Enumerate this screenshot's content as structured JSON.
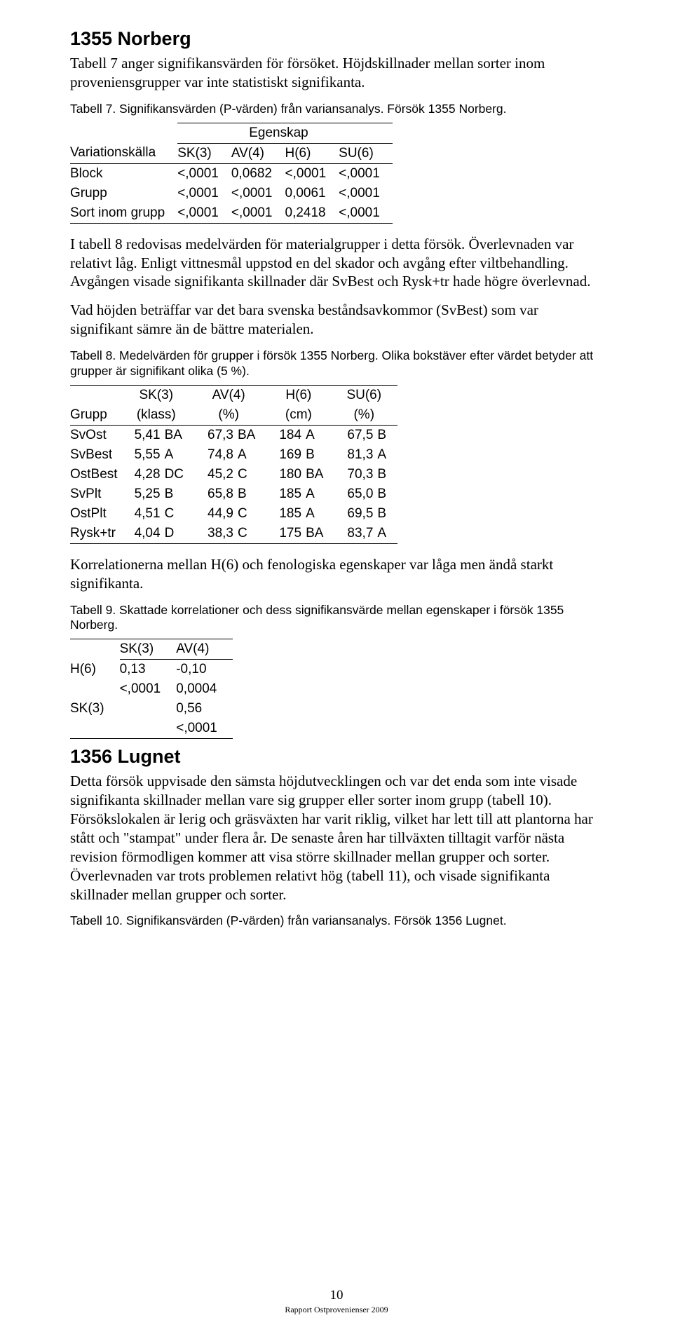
{
  "heading1": "1355 Norberg",
  "p1": "Tabell 7 anger signifikansvärden för försöket. Höjdskillnader mellan sorter inom proveniensgrupper var inte statistiskt signifikanta.",
  "caption7": "Tabell 7. Signifikansvärden (P-värden) från variansanalys. Försök 1355 Norberg.",
  "t7": {
    "egenskap": "Egenskap",
    "colhead": [
      "Variationskälla",
      "SK(3)",
      "AV(4)",
      "H(6)",
      "SU(6)"
    ],
    "rows": [
      {
        "label": "Block",
        "v": [
          "<,0001",
          "0,0682",
          "<,0001",
          "<,0001"
        ]
      },
      {
        "label": "Grupp",
        "v": [
          "<,0001",
          "<,0001",
          "0,0061",
          "<,0001"
        ]
      },
      {
        "label": "Sort inom grupp",
        "v": [
          "<,0001",
          "<,0001",
          "0,2418",
          "<,0001"
        ]
      }
    ]
  },
  "p2": "I tabell 8 redovisas medelvärden för materialgrupper i detta försök. Överlevnaden var relativt låg. Enligt vittnesmål uppstod en del skador och avgång efter viltbehandling. Avgången visade signifikanta skillnader där SvBest och Rysk+tr hade högre överlevnad.",
  "p3": "Vad höjden beträffar var det bara svenska beståndsavkommor (SvBest) som var signifikant sämre än de bättre materialen.",
  "caption8": "Tabell 8. Medelvärden för grupper i försök 1355 Norberg. Olika bokstäver efter värdet betyder att grupper är signifikant olika (5 %).",
  "t8": {
    "head_top": [
      "",
      "SK(3)",
      "AV(4)",
      "H(6)",
      "SU(6)"
    ],
    "head_bot": [
      "Grupp",
      "(klass)",
      "(%)",
      "(cm)",
      "(%)"
    ],
    "rows": [
      {
        "g": "SvOst",
        "c": [
          [
            "5,41",
            "BA"
          ],
          [
            "67,3",
            "BA"
          ],
          [
            "184",
            "A"
          ],
          [
            "67,5",
            "B"
          ]
        ]
      },
      {
        "g": "SvBest",
        "c": [
          [
            "5,55",
            "A"
          ],
          [
            "74,8",
            "A"
          ],
          [
            "169",
            "B"
          ],
          [
            "81,3",
            "A"
          ]
        ]
      },
      {
        "g": "OstBest",
        "c": [
          [
            "4,28",
            "DC"
          ],
          [
            "45,2",
            "C"
          ],
          [
            "180",
            "BA"
          ],
          [
            "70,3",
            "B"
          ]
        ]
      },
      {
        "g": "SvPlt",
        "c": [
          [
            "5,25",
            "B"
          ],
          [
            "65,8",
            "B"
          ],
          [
            "185",
            "A"
          ],
          [
            "65,0",
            "B"
          ]
        ]
      },
      {
        "g": "OstPlt",
        "c": [
          [
            "4,51",
            "C"
          ],
          [
            "44,9",
            "C"
          ],
          [
            "185",
            "A"
          ],
          [
            "69,5",
            "B"
          ]
        ]
      },
      {
        "g": "Rysk+tr",
        "c": [
          [
            "4,04",
            "D"
          ],
          [
            "38,3",
            "C"
          ],
          [
            "175",
            "BA"
          ],
          [
            "83,7",
            "A"
          ]
        ]
      }
    ]
  },
  "p4": "Korrelationerna mellan H(6) och fenologiska egenskaper var låga men ändå starkt signifikanta.",
  "caption9": "Tabell 9. Skattade korrelationer och dess signifikansvärde mellan egenskaper i försök 1355 Norberg.",
  "t9": {
    "head": [
      "",
      "SK(3)",
      "AV(4)"
    ],
    "rows": [
      {
        "l": "H(6)",
        "v": [
          "0,13",
          "-0,10"
        ]
      },
      {
        "l": "",
        "v": [
          "<,0001",
          "0,0004"
        ]
      },
      {
        "l": "SK(3)",
        "v": [
          "",
          "0,56"
        ]
      },
      {
        "l": "",
        "v": [
          "",
          "<,0001"
        ]
      }
    ]
  },
  "heading2": "1356 Lugnet",
  "p5": "Detta försök uppvisade den sämsta höjdutvecklingen och var det enda som inte visade signifikanta skillnader mellan vare sig grupper eller sorter inom grupp (tabell 10). Försökslokalen är lerig och gräsväxten har varit riklig, vilket har lett till att plantorna har stått och \"stampat\" under flera år. De senaste åren har tillväxten tilltagit varför nästa revision förmodligen kommer att visa större skillnader mellan grupper och sorter. Överlevnaden var trots problemen relativt hög (tabell 11), och visade signifikanta skillnader mellan grupper och sorter.",
  "caption10": "Tabell 10. Signifikansvärden (P-värden) från variansanalys. Försök 1356 Lugnet.",
  "page_number": "10",
  "report_line": "Rapport Ostprovenienser 2009",
  "colors": {
    "text": "#000000",
    "background": "#ffffff",
    "rule": "#000000"
  }
}
